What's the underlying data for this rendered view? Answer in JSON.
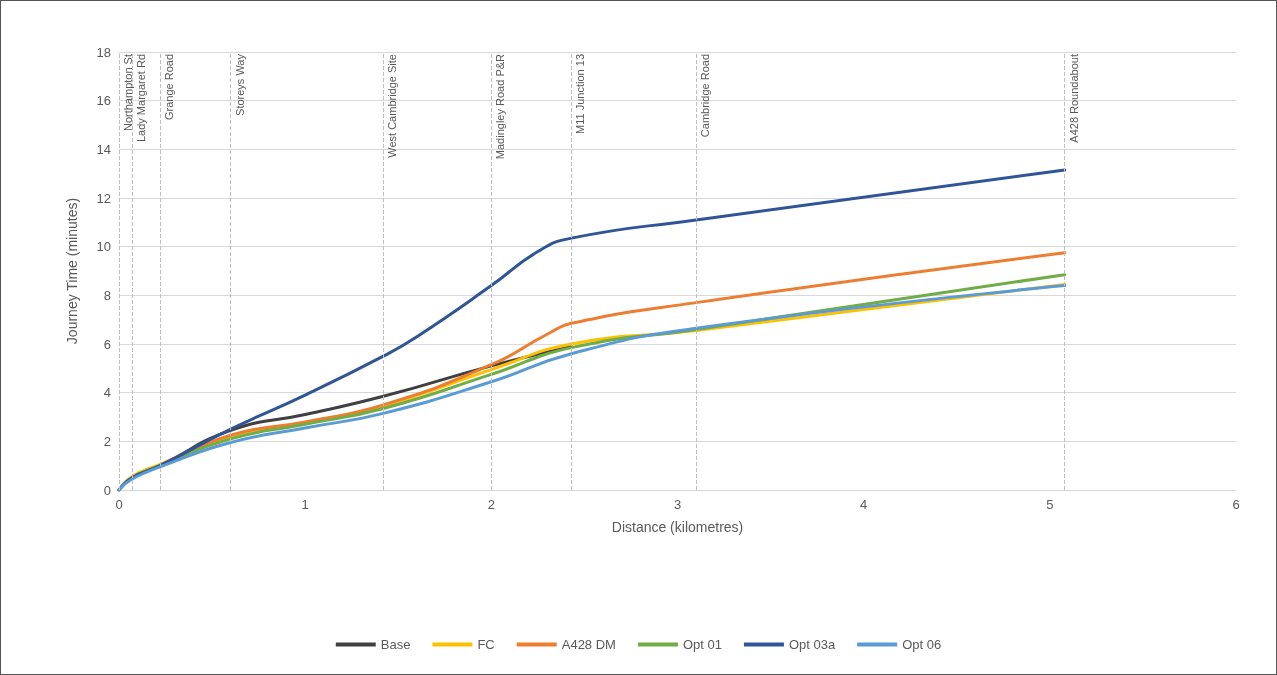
{
  "chart_data": {
    "type": "line",
    "xlabel": "Distance (kilometres)",
    "ylabel": "Journey Time (minutes)",
    "xlim": [
      0,
      6
    ],
    "xticks": [
      0,
      1,
      2,
      3,
      4,
      5,
      6
    ],
    "ylim": [
      0,
      18
    ],
    "yticks": [
      0,
      2,
      4,
      6,
      8,
      10,
      12,
      14,
      16,
      18
    ],
    "grid": "y",
    "legend": "bottom",
    "marker": "none",
    "line_style": "solid",
    "x": [
      0,
      0.07,
      0.22,
      0.6,
      1.0,
      1.42,
      2.0,
      2.43,
      3.1,
      5.08
    ],
    "series": [
      {
        "name": "Base",
        "color": "#404040",
        "values": [
          0,
          0.5,
          1.0,
          2.45,
          3.1,
          3.85,
          5.1,
          5.9,
          null,
          null
        ]
      },
      {
        "name": "FC",
        "color": "#ffc000",
        "values": [
          0,
          0.55,
          1.05,
          2.2,
          2.75,
          3.45,
          4.95,
          6.0,
          6.55,
          8.45
        ]
      },
      {
        "name": "A428 DM",
        "color": "#ed7d31",
        "x": [
          0.22,
          0.6,
          1.0,
          1.42,
          2.0,
          2.3,
          2.43,
          3.1,
          5.08
        ],
        "values": [
          1.0,
          2.25,
          2.8,
          3.5,
          5.15,
          6.4,
          6.85,
          7.7,
          9.75
        ]
      },
      {
        "name": "Opt 01",
        "color": "#70ad47",
        "values": [
          0,
          0.5,
          1.0,
          2.1,
          2.7,
          3.35,
          4.75,
          5.85,
          6.6,
          8.85
        ]
      },
      {
        "name": "Opt 03a",
        "color": "#2f5597",
        "x": [
          0,
          0.07,
          0.22,
          0.6,
          1.0,
          1.42,
          1.6,
          2.0,
          2.25,
          2.43,
          3.1,
          5.08
        ],
        "values": [
          0,
          0.5,
          1.0,
          2.5,
          3.9,
          5.5,
          6.3,
          8.4,
          9.8,
          10.35,
          11.1,
          13.15
        ]
      },
      {
        "name": "Opt 06",
        "color": "#5b9bd5",
        "values": [
          0,
          0.45,
          0.95,
          1.95,
          2.55,
          3.15,
          4.45,
          5.6,
          6.65,
          8.4
        ]
      }
    ],
    "ref_lines": [
      {
        "axis": "x",
        "value": 0,
        "label": "Northampton St"
      },
      {
        "axis": "x",
        "value": 0.07,
        "label": "Lady Margaret Rd"
      },
      {
        "axis": "x",
        "value": 0.22,
        "label": "Grange Road"
      },
      {
        "axis": "x",
        "value": 0.6,
        "label": "Storeys Way"
      },
      {
        "axis": "x",
        "value": 1.42,
        "label": "West Cambridge Site"
      },
      {
        "axis": "x",
        "value": 2.0,
        "label": "Madingley Road P&R"
      },
      {
        "axis": "x",
        "value": 2.43,
        "label": "M11 Junction 13"
      },
      {
        "axis": "x",
        "value": 3.1,
        "label": "Cambridge Road"
      },
      {
        "axis": "x",
        "value": 5.08,
        "label": "A428 Roundabout"
      }
    ]
  }
}
